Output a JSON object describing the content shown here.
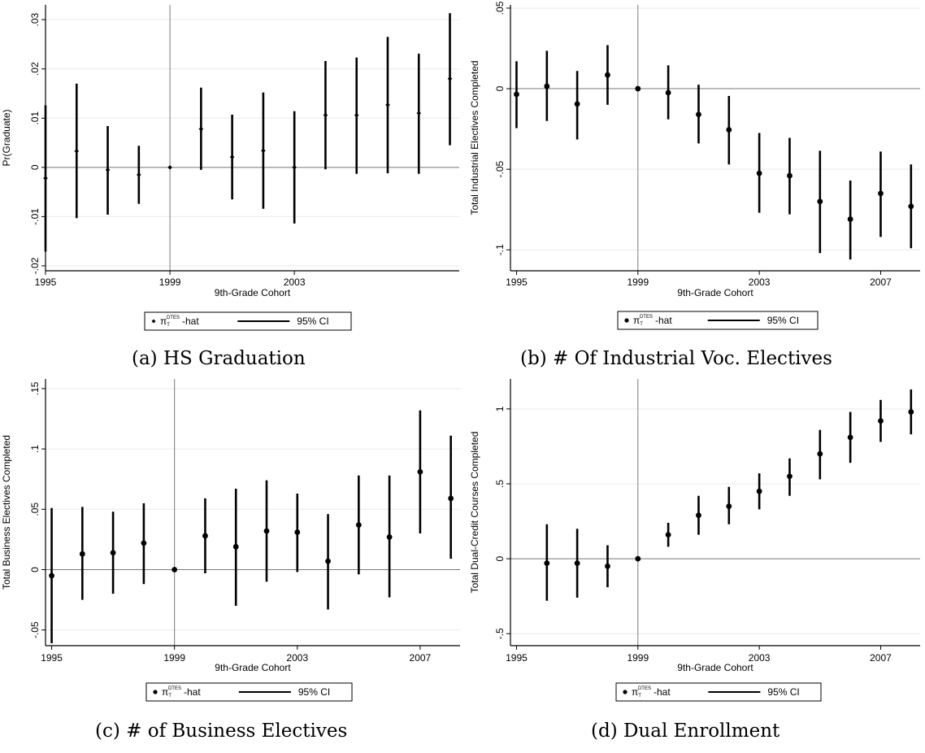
{
  "captions": {
    "a": "(a) HS Graduation",
    "b": "(b) # Of Industrial Voc. Electives",
    "c": "(c) # of Business Electives",
    "d": "(d) Dual Enrollment"
  },
  "legend": {
    "point_label": "π",
    "point_sub": "T",
    "point_sup": "DTES",
    "point_suffix": "-hat",
    "ci_label": "95% CI"
  },
  "colors": {
    "axes": "#000000",
    "grid": "#e6ecf0",
    "refline": "#7a7a7a"
  },
  "chart_data": [
    {
      "type": "scatter",
      "id": "a",
      "xlabel": "9th-Grade Cohort",
      "ylabel": "Pr(Graduate)",
      "xlim": [
        1995,
        2008.3
      ],
      "ylim": [
        -0.021,
        0.033
      ],
      "xticks": [
        1995,
        1999,
        2003
      ],
      "yticks": [
        -0.02,
        -0.01,
        0,
        0.01,
        0.02,
        0.03
      ],
      "ytick_labels": [
        "-.02",
        "-.01",
        "0",
        ".01",
        ".02",
        ".03"
      ],
      "marker": "diamond",
      "ref_x": 1999,
      "ref_y": 0,
      "grid": true,
      "series": [
        {
          "x": [
            1995,
            1996,
            1997,
            1998,
            1999,
            2000,
            2001,
            2002,
            2003,
            2004,
            2005,
            2006,
            2007,
            2008
          ],
          "y": [
            -0.0022,
            0.0033,
            -0.0005,
            -0.0015,
            0.0,
            0.0078,
            0.0021,
            0.0034,
            0.0,
            0.0106,
            0.0106,
            0.0127,
            0.011,
            0.018
          ],
          "lo": [
            -0.0171,
            -0.0103,
            -0.0096,
            -0.0074,
            0.0,
            -0.0005,
            -0.0065,
            -0.0084,
            -0.0114,
            -0.0004,
            -0.0013,
            -0.0012,
            -0.0013,
            0.0045
          ],
          "hi": [
            0.0126,
            0.017,
            0.0084,
            0.0044,
            0.0,
            0.0162,
            0.0107,
            0.0152,
            0.0114,
            0.0216,
            0.0223,
            0.0265,
            0.0231,
            0.0313
          ]
        }
      ]
    },
    {
      "type": "scatter",
      "id": "b",
      "xlabel": "9th-Grade Cohort",
      "ylabel": "Total Industrial Electives Completed",
      "xlim": [
        1994.8,
        2008.3
      ],
      "ylim": [
        -0.113,
        0.052
      ],
      "xticks": [
        1995,
        1999,
        2003,
        2007
      ],
      "yticks": [
        -0.1,
        -0.05,
        0,
        0.05
      ],
      "ytick_labels": [
        "-.1",
        "-.05",
        "0",
        ".05"
      ],
      "marker": "dot",
      "ref_x": 1999,
      "ref_y": 0,
      "grid": true,
      "series": [
        {
          "x": [
            1995,
            1996,
            1997,
            1998,
            1999,
            2000,
            2001,
            2002,
            2003,
            2004,
            2005,
            2006,
            2007,
            2008
          ],
          "y": [
            -0.0035,
            0.0015,
            -0.0095,
            0.0085,
            0.0,
            -0.0025,
            -0.016,
            -0.0255,
            -0.0525,
            -0.054,
            -0.07,
            -0.081,
            -0.065,
            -0.073
          ],
          "lo": [
            -0.0245,
            -0.02,
            -0.0315,
            -0.01,
            0.0,
            -0.019,
            -0.034,
            -0.047,
            -0.077,
            -0.078,
            -0.102,
            -0.106,
            -0.092,
            -0.099
          ],
          "hi": [
            0.017,
            0.0235,
            0.011,
            0.027,
            0.0,
            0.0145,
            0.0025,
            -0.0045,
            -0.0275,
            -0.0305,
            -0.0385,
            -0.057,
            -0.039,
            -0.047
          ]
        }
      ]
    },
    {
      "type": "scatter",
      "id": "c",
      "xlabel": "9th-Grade Cohort",
      "ylabel": "Total Business Electives Completed",
      "xlim": [
        1994.8,
        2008.3
      ],
      "ylim": [
        -0.063,
        0.158
      ],
      "xticks": [
        1995,
        1999,
        2003,
        2007
      ],
      "yticks": [
        -0.05,
        0,
        0.05,
        0.1,
        0.15
      ],
      "ytick_labels": [
        "-.05",
        "0",
        ".05",
        ".1",
        ".15"
      ],
      "marker": "dot",
      "ref_x": 1999,
      "ref_y": 0,
      "grid": true,
      "series": [
        {
          "x": [
            1995,
            1996,
            1997,
            1998,
            1999,
            2000,
            2001,
            2002,
            2003,
            2004,
            2005,
            2006,
            2007,
            2008
          ],
          "y": [
            -0.005,
            0.013,
            0.014,
            0.022,
            0.0,
            0.028,
            0.019,
            0.032,
            0.031,
            0.007,
            0.037,
            0.027,
            0.081,
            0.059
          ],
          "lo": [
            -0.061,
            -0.025,
            -0.02,
            -0.012,
            0.0,
            -0.003,
            -0.03,
            -0.01,
            -0.002,
            -0.033,
            -0.004,
            -0.023,
            0.03,
            0.009
          ],
          "hi": [
            0.051,
            0.052,
            0.048,
            0.055,
            0.0,
            0.059,
            0.067,
            0.074,
            0.063,
            0.046,
            0.078,
            0.078,
            0.132,
            0.111
          ]
        }
      ]
    },
    {
      "type": "scatter",
      "id": "d",
      "xlabel": "9th-Grade Cohort",
      "ylabel": "Total Dual-Credit Courses Completed",
      "xlim": [
        1994.8,
        2008.3
      ],
      "ylim": [
        -0.58,
        1.2
      ],
      "xticks": [
        1995,
        1999,
        2003,
        2007
      ],
      "yticks": [
        -0.5,
        0,
        0.5,
        1
      ],
      "ytick_labels": [
        "-.5",
        "0",
        ".5",
        "1"
      ],
      "marker": "dot",
      "ref_x": 1999,
      "ref_y": 0,
      "grid": true,
      "series": [
        {
          "x": [
            1996,
            1997,
            1998,
            1999,
            2000,
            2001,
            2002,
            2003,
            2004,
            2005,
            2006,
            2007,
            2008
          ],
          "y": [
            -0.03,
            -0.03,
            -0.05,
            0.0,
            0.16,
            0.29,
            0.35,
            0.45,
            0.55,
            0.7,
            0.81,
            0.92,
            0.98
          ],
          "lo": [
            -0.28,
            -0.26,
            -0.19,
            0.0,
            0.08,
            0.16,
            0.23,
            0.33,
            0.42,
            0.53,
            0.64,
            0.78,
            0.83
          ],
          "hi": [
            0.23,
            0.2,
            0.09,
            0.0,
            0.24,
            0.42,
            0.48,
            0.57,
            0.67,
            0.86,
            0.98,
            1.06,
            1.13
          ]
        }
      ]
    }
  ]
}
